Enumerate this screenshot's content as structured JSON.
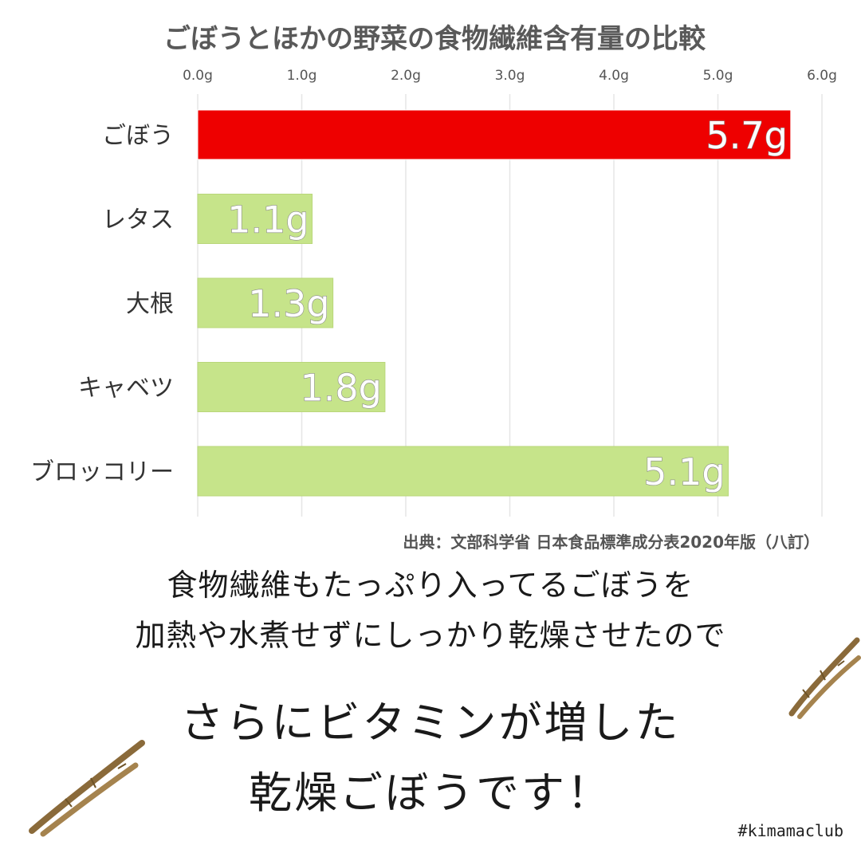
{
  "chart_data": {
    "type": "bar",
    "orientation": "horizontal",
    "title": "ごぼうとほかの野菜の食物繊維含有量の比較",
    "categories": [
      "ごぼう",
      "レタス",
      "大根",
      "キャベツ",
      "ブロッコリー"
    ],
    "values": [
      5.7,
      1.1,
      1.3,
      1.8,
      5.1
    ],
    "value_labels": [
      "5.7g",
      "1.1g",
      "1.3g",
      "1.8g",
      "5.1g"
    ],
    "xlim": [
      0,
      6
    ],
    "ticks": [
      "0.0g",
      "1.0g",
      "2.0g",
      "3.0g",
      "4.0g",
      "5.0g",
      "6.0g"
    ],
    "grid": true,
    "axis_position": "top",
    "colors": {
      "highlight": "#ee0000",
      "default": "#c6e48a"
    }
  },
  "source": "出典：文部科学省 日本食品標準成分表2020年版（八訂）",
  "captions": {
    "line1": "食物繊維もたっぷり入ってるごぼうを",
    "line2": "加熱や水煮せずにしっかり乾燥させたので",
    "line3": "さらにビタミンが増した",
    "line4": "乾燥ごぼうです！"
  },
  "hashtag": "#kimamaclub",
  "decorations": [
    "burdock-root-icon",
    "burdock-root-icon"
  ]
}
